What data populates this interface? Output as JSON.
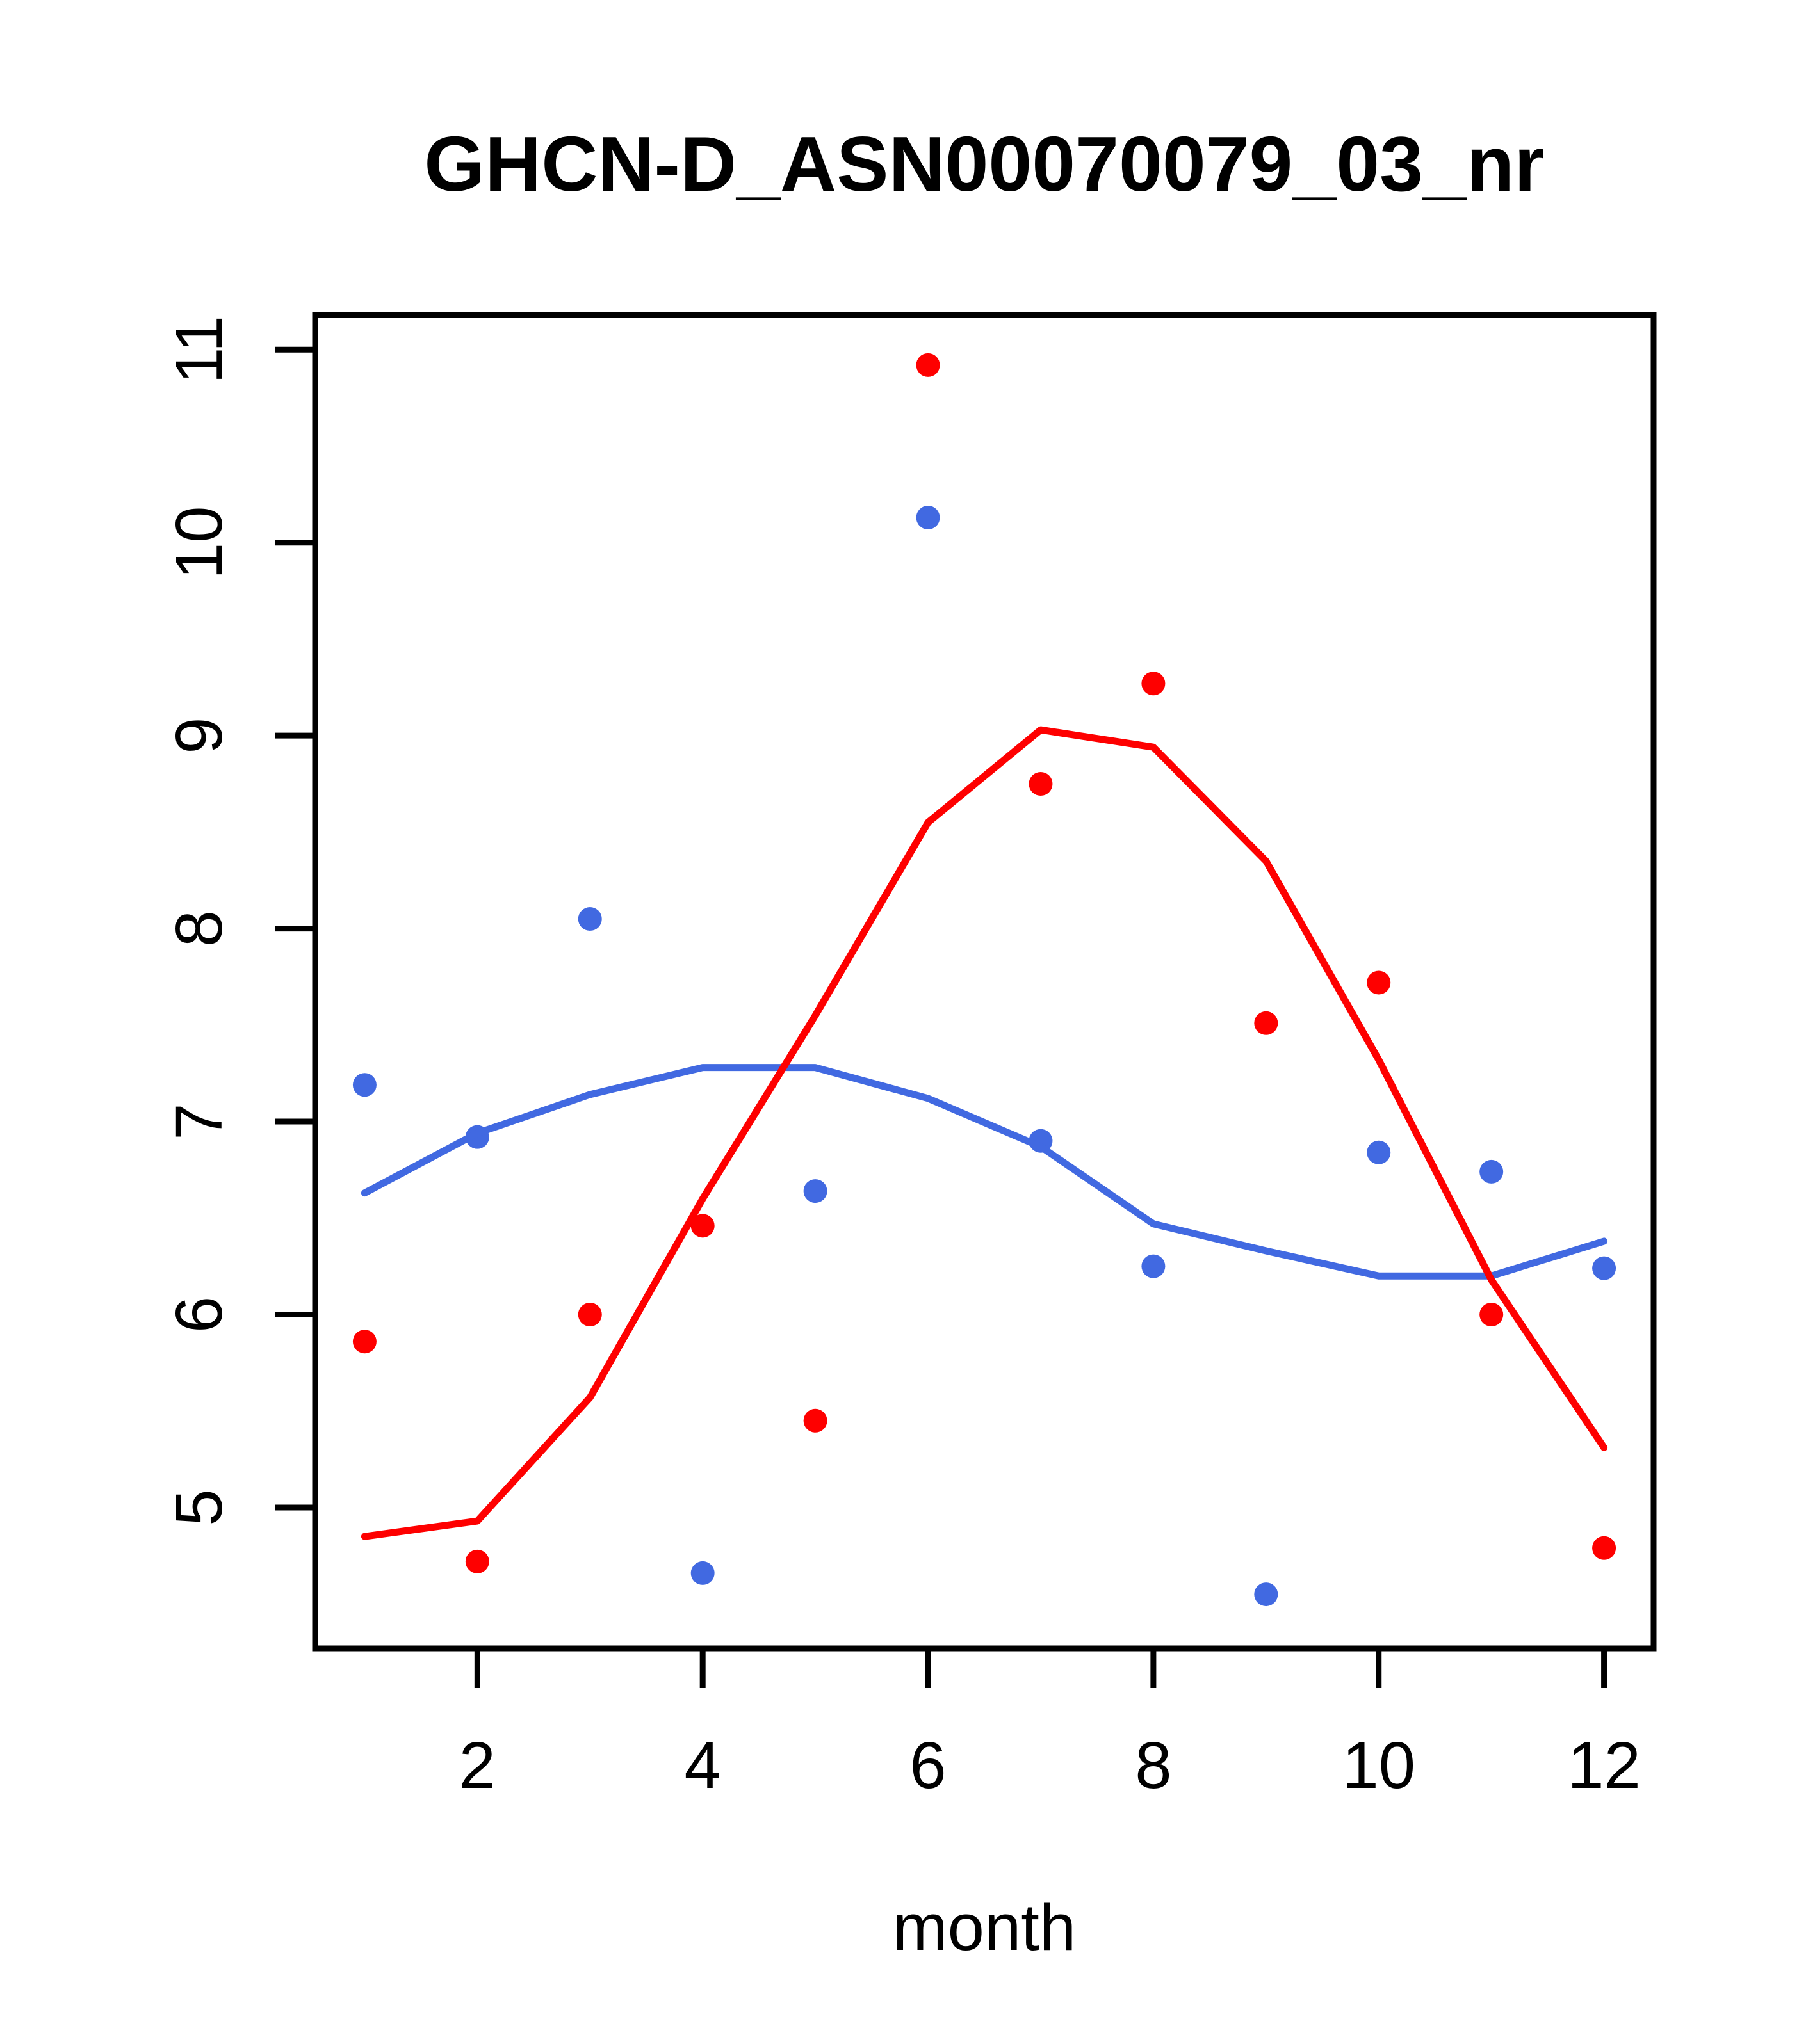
{
  "title": "GHCN-D_ASN00070079_03_nr",
  "chart_data": {
    "type": "scatter",
    "title": "GHCN-D_ASN00070079_03_nr",
    "xlabel": "month",
    "ylabel": "",
    "grid": false,
    "legend": "none",
    "x": [
      1,
      2,
      3,
      4,
      5,
      6,
      7,
      8,
      9,
      10,
      11,
      12
    ],
    "xticks": [
      2,
      4,
      6,
      8,
      10,
      12
    ],
    "yticks": [
      5,
      6,
      7,
      8,
      9,
      10,
      11
    ],
    "xlim": [
      0.56,
      12.44
    ],
    "ylim": [
      4.27,
      11.18
    ],
    "colors": {
      "red": "#fe0000",
      "blue": "#4169e1",
      "axis": "#000000"
    },
    "series": [
      {
        "name": "red-points",
        "type": "scatter",
        "color": "#fe0000",
        "values": [
          5.86,
          4.72,
          6.0,
          6.46,
          5.45,
          10.92,
          8.75,
          9.27,
          7.51,
          7.72,
          6.0,
          4.79
        ]
      },
      {
        "name": "blue-points",
        "type": "scatter",
        "color": "#4169e1",
        "values": [
          7.19,
          6.92,
          8.05,
          4.66,
          6.64,
          10.13,
          6.9,
          6.25,
          4.55,
          6.84,
          6.74,
          6.24
        ]
      },
      {
        "name": "blue-smooth-line",
        "type": "line",
        "color": "#4169e1",
        "values": [
          6.63,
          6.94,
          7.14,
          7.28,
          7.28,
          7.12,
          6.87,
          6.47,
          6.33,
          6.2,
          6.2,
          6.38
        ]
      },
      {
        "name": "red-smooth-line",
        "type": "line",
        "color": "#fe0000",
        "values": [
          4.85,
          4.93,
          5.57,
          6.6,
          7.55,
          8.55,
          9.03,
          8.94,
          8.35,
          7.32,
          6.18,
          5.31
        ]
      }
    ]
  }
}
